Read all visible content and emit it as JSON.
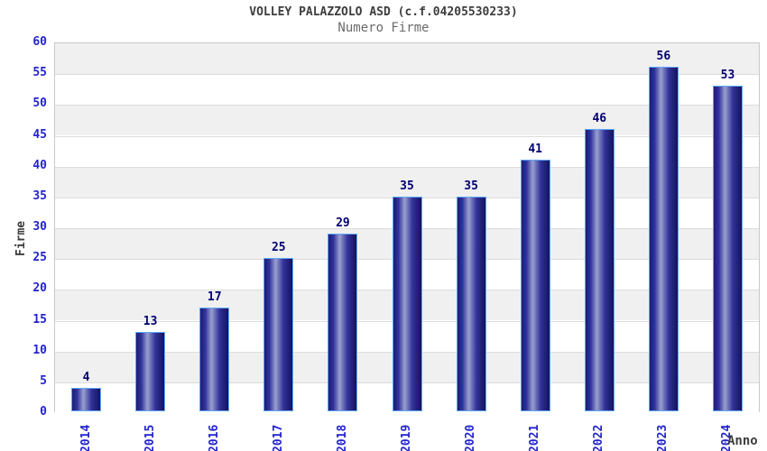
{
  "chart_data": {
    "type": "bar",
    "title": "VOLLEY PALAZZOLO ASD (c.f.04205530233)",
    "subtitle": "Numero Firme",
    "xlabel": "Anno",
    "ylabel": "Firme",
    "categories": [
      "2014",
      "2015",
      "2016",
      "2017",
      "2018",
      "2019",
      "2020",
      "2021",
      "2022",
      "2023",
      "2024"
    ],
    "values": [
      4,
      13,
      17,
      25,
      29,
      35,
      35,
      41,
      46,
      56,
      53
    ],
    "ylim": [
      0,
      60
    ],
    "ytick_step": 5,
    "grid": "horizontal-bands",
    "legend_position": "none",
    "colors": {
      "tick_label": "#2323cd",
      "value_label": "#00006e",
      "bar_dark": "#1c1c74",
      "bar_mid": "#32329a",
      "bar_highlight": "#98a0d0",
      "bar_border": "#5fa8f5",
      "band_gray": "#f0f0f0",
      "band_white": "#ffffff",
      "gridline": "#dcdcdc",
      "plot_border": "#c9c9c9",
      "title_text": "#3d3d3d",
      "subtitle_text": "#6b6b6b"
    }
  }
}
